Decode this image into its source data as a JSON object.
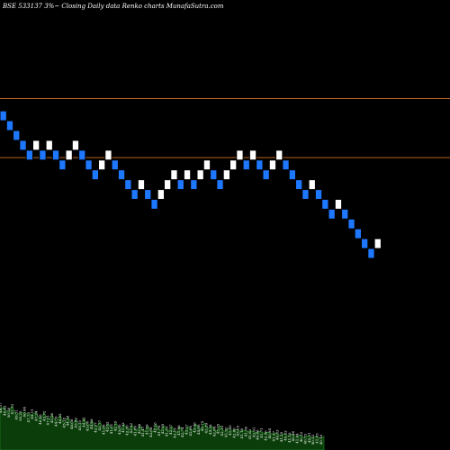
{
  "header": {
    "title": "BSE 533137 3%~  Closing Daily data  Renko  charts MunafaSutra.com"
  },
  "colors": {
    "background": "#000000",
    "up_brick": "#ffffff",
    "down_brick": "#1e78ff",
    "brick_border": "#000000",
    "reference_line": "#b8621b",
    "volume_fill": "#0a3d0a",
    "volume_edge": "#1f8a1f",
    "label_text": "#ffffff"
  },
  "chart_data": {
    "type": "renko",
    "title": "BSE 533137 3%~  Closing Daily data  Renko  charts MunafaSutra.com",
    "brick_size_note": "3%",
    "reference_lines": [
      58.5,
      56.1
    ],
    "ylim": [
      44.2,
      62.0
    ],
    "bricks": [
      {
        "dir": "down",
        "value": 57.8
      },
      {
        "dir": "down",
        "value": 57.4
      },
      {
        "dir": "down",
        "value": 57.0
      },
      {
        "dir": "down",
        "value": 56.6
      },
      {
        "dir": "down",
        "value": 56.2
      },
      {
        "dir": "up",
        "value": 56.6
      },
      {
        "dir": "down",
        "value": 56.2
      },
      {
        "dir": "up",
        "value": 56.6
      },
      {
        "dir": "down",
        "value": 56.2
      },
      {
        "dir": "down",
        "value": 55.8
      },
      {
        "dir": "up",
        "value": 56.2
      },
      {
        "dir": "up",
        "value": 56.6
      },
      {
        "dir": "down",
        "value": 56.2
      },
      {
        "dir": "down",
        "value": 55.8
      },
      {
        "dir": "down",
        "value": 55.4
      },
      {
        "dir": "up",
        "value": 55.8
      },
      {
        "dir": "up",
        "value": 56.2
      },
      {
        "dir": "down",
        "value": 55.8
      },
      {
        "dir": "down",
        "value": 55.4
      },
      {
        "dir": "down",
        "value": 55.0
      },
      {
        "dir": "down",
        "value": 54.6
      },
      {
        "dir": "up",
        "value": 55.0
      },
      {
        "dir": "down",
        "value": 54.6
      },
      {
        "dir": "down",
        "value": 54.2
      },
      {
        "dir": "up",
        "value": 54.6
      },
      {
        "dir": "up",
        "value": 55.0
      },
      {
        "dir": "up",
        "value": 55.4
      },
      {
        "dir": "down",
        "value": 55.0
      },
      {
        "dir": "up",
        "value": 55.4
      },
      {
        "dir": "down",
        "value": 55.0
      },
      {
        "dir": "up",
        "value": 55.4
      },
      {
        "dir": "up",
        "value": 55.8
      },
      {
        "dir": "down",
        "value": 55.4
      },
      {
        "dir": "down",
        "value": 55.0
      },
      {
        "dir": "up",
        "value": 55.4
      },
      {
        "dir": "up",
        "value": 55.8
      },
      {
        "dir": "up",
        "value": 56.2
      },
      {
        "dir": "down",
        "value": 55.8
      },
      {
        "dir": "up",
        "value": 56.2
      },
      {
        "dir": "down",
        "value": 55.8
      },
      {
        "dir": "down",
        "value": 55.4
      },
      {
        "dir": "up",
        "value": 55.8
      },
      {
        "dir": "up",
        "value": 56.2
      },
      {
        "dir": "down",
        "value": 55.8
      },
      {
        "dir": "down",
        "value": 55.4
      },
      {
        "dir": "down",
        "value": 55.0
      },
      {
        "dir": "down",
        "value": 54.6
      },
      {
        "dir": "up",
        "value": 55.0
      },
      {
        "dir": "down",
        "value": 54.6
      },
      {
        "dir": "down",
        "value": 54.2
      },
      {
        "dir": "down",
        "value": 53.8
      },
      {
        "dir": "up",
        "value": 54.2
      },
      {
        "dir": "down",
        "value": 53.8
      },
      {
        "dir": "down",
        "value": 53.4
      },
      {
        "dir": "down",
        "value": 53.0
      },
      {
        "dir": "down",
        "value": 52.6
      },
      {
        "dir": "down",
        "value": 52.2
      },
      {
        "dir": "up",
        "value": 52.6
      }
    ],
    "volume": {
      "values": [
        0.62,
        0.58,
        0.55,
        0.6,
        0.52,
        0.5,
        0.56,
        0.48,
        0.53,
        0.5,
        0.45,
        0.5,
        0.44,
        0.47,
        0.42,
        0.46,
        0.4,
        0.43,
        0.38,
        0.4,
        0.36,
        0.41,
        0.35,
        0.38,
        0.33,
        0.36,
        0.3,
        0.34,
        0.31,
        0.35,
        0.3,
        0.33,
        0.29,
        0.32,
        0.28,
        0.31,
        0.27,
        0.3,
        0.26,
        0.33,
        0.28,
        0.31,
        0.27,
        0.3,
        0.25,
        0.29,
        0.26,
        0.3,
        0.28,
        0.33,
        0.3,
        0.35,
        0.32,
        0.3,
        0.27,
        0.31,
        0.28,
        0.26,
        0.29,
        0.25,
        0.28,
        0.24,
        0.27,
        0.23,
        0.26,
        0.22,
        0.25,
        0.21,
        0.24,
        0.2,
        0.22,
        0.19,
        0.21,
        0.18,
        0.2,
        0.17,
        0.19,
        0.16,
        0.18,
        0.15,
        0.17,
        0.15
      ],
      "labels": [
        "49.57",
        "48.42",
        "50.16",
        "47.73",
        "49.51",
        "50.25",
        "46.44",
        "47.73",
        "49.11",
        "47.24",
        "46.88",
        "45.72",
        "47.31",
        "45.20",
        "44.76",
        "46.63",
        "45.18",
        "44.18",
        "46.06",
        "43.82",
        "45.10",
        "44.41",
        "43.00",
        "44.89",
        "42.57",
        "43.77",
        "41.96",
        "42.82",
        "41.81",
        "42.75",
        "43.00",
        "41.32",
        "42.30",
        "43.52",
        "41.80",
        "42.88",
        "41.47",
        "41.89",
        "43.08",
        "42.16",
        "41.74",
        "42.95",
        "41.33",
        "42.37",
        "43.12",
        "41.98",
        "42.74",
        "43.27",
        "42.06",
        "43.46",
        "44.00",
        "42.75",
        "43.39",
        "44.39",
        "42.84",
        "43.35",
        "42.13",
        "41.92",
        "41.45",
        "42.60",
        "43.05",
        "41.18",
        "41.50",
        "41.82",
        "42.91",
        "40.86",
        "41.71",
        "42.56",
        "40.94",
        "41.37",
        "40.83",
        "41.25",
        "40.62",
        "41.18",
        "40.46",
        "41.04",
        "40.12",
        "40.75",
        "40.31",
        "40.52",
        "41.05",
        "40.16"
      ]
    }
  }
}
